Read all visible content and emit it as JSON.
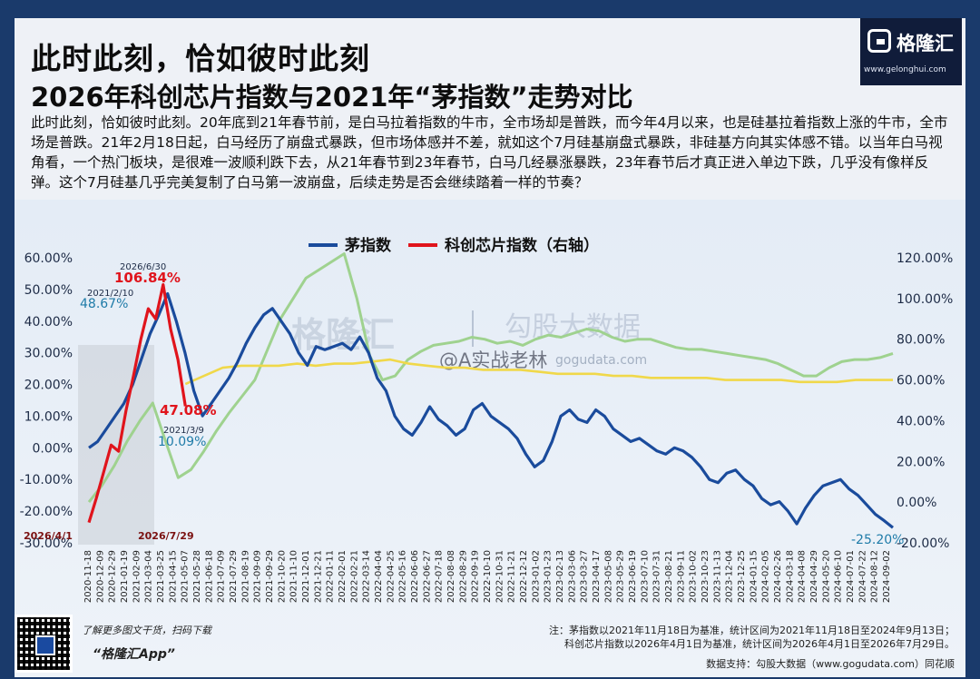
{
  "header": {
    "title1": "此时此刻，恰如彼时此刻",
    "title2": "2026年科创芯片指数与2021年“茅指数”走势对比",
    "paragraph": "此时此刻，恰如彼时此刻。20年底到21年春节前，是白马拉着指数的牛市，全市场却是普跌，而今年4月以来，也是硅基拉着指数上涨的牛市，全市场是普跌。21年2月18日起，白马经历了崩盘式暴跌，但市场体感并不差，就如这个7月硅基崩盘式暴跌，非硅基方向其实体感不错。以当年白马视角看，一个热门板块，是很难一波顺利跌下去，从21年春节到23年春节，白马几经暴涨暴跌，23年春节后才真正进入单边下跌，几乎没有像样反弹。这个7月硅基几乎完美复制了白马第一波崩盘，后续走势是否会继续踏着一样的节奏？"
  },
  "logo": {
    "name": "格隆汇",
    "url": "www.gelonghui.com"
  },
  "watermarks": {
    "wm1": "格隆汇",
    "wm2": "勾股大数据",
    "wm3": "gogudata.com",
    "weibo": "@A实战老林"
  },
  "chart_data": {
    "type": "line",
    "legend": [
      "茅指数",
      "科创芯片指数（右轴）"
    ],
    "left_axis": {
      "ticks": [
        "60.00%",
        "50.00%",
        "40.00%",
        "30.00%",
        "20.00%",
        "10.00%",
        "0.00%",
        "-10.00%",
        "-20.00%",
        "-30.00%"
      ],
      "range": [
        -30,
        60
      ]
    },
    "right_axis": {
      "ticks": [
        "120.00%",
        "100.00%",
        "80.00%",
        "60.00%",
        "40.00%",
        "20.00%",
        "0.00%",
        "-20.00%"
      ],
      "range": [
        -20,
        120
      ]
    },
    "x_ticks": [
      "2020-11-18",
      "2020-12-09",
      "2020-12-29",
      "2021-01-19",
      "2021-02-09",
      "2021-03-04",
      "2021-03-25",
      "2021-04-15",
      "2021-05-07",
      "2021-05-28",
      "2021-06-18",
      "2021-07-09",
      "2021-07-29",
      "2021-08-19",
      "2021-09-09",
      "2021-09-29",
      "2021-10-20",
      "2021-11-10",
      "2021-12-01",
      "2021-12-21",
      "2022-01-11",
      "2022-02-01",
      "2022-02-21",
      "2022-03-14",
      "2022-04-04",
      "2022-04-25",
      "2022-05-16",
      "2022-06-06",
      "2022-06-27",
      "2022-07-18",
      "2022-08-08",
      "2022-08-29",
      "2022-09-19",
      "2022-10-10",
      "2022-10-31",
      "2022-11-21",
      "2022-12-12",
      "2023-01-02",
      "2023-01-23",
      "2023-02-13",
      "2023-03-06",
      "2023-03-27",
      "2023-04-17",
      "2023-05-08",
      "2023-05-29",
      "2023-06-19",
      "2023-07-10",
      "2023-07-31",
      "2023-08-21",
      "2023-09-11",
      "2023-10-02",
      "2023-10-23",
      "2023-11-13",
      "2023-12-04",
      "2023-12-25",
      "2024-01-15",
      "2024-02-05",
      "2024-02-26",
      "2024-03-18",
      "2024-04-08",
      "2024-04-29",
      "2024-05-20",
      "2024-06-10",
      "2024-07-01",
      "2024-07-22",
      "2024-08-12",
      "2024-09-02"
    ],
    "series": [
      {
        "name": "茅指数",
        "color": "#1a4b9c",
        "axis": "left",
        "x_range": [
          0,
          1
        ],
        "values": [
          0,
          2,
          6,
          10,
          14,
          20,
          28,
          36,
          42,
          48.67,
          40,
          30,
          18,
          10.09,
          14,
          18,
          22,
          27,
          33,
          38,
          42,
          44,
          40,
          36,
          30,
          26,
          32,
          31,
          32,
          33,
          31,
          35,
          30,
          22,
          18,
          10,
          6,
          4,
          8,
          13,
          9,
          7,
          4,
          6,
          12,
          14,
          10,
          8,
          6,
          3,
          -2,
          -6,
          -4,
          2,
          10,
          12,
          9,
          8,
          12,
          10,
          6,
          4,
          2,
          3,
          1,
          -1,
          -2,
          0,
          -1,
          -3,
          -6,
          -10,
          -11,
          -8,
          -7,
          -10,
          -12,
          -16,
          -18,
          -17,
          -20,
          -24,
          -19,
          -15,
          -12,
          -11,
          -10,
          -13,
          -15,
          -18,
          -21,
          -23,
          -25.2
        ]
      },
      {
        "name": "科创芯片指数（右轴）",
        "color": "#e0141c",
        "axis": "right",
        "x_range": [
          0,
          0.12
        ],
        "values": [
          -10,
          2,
          15,
          28,
          25,
          45,
          62,
          80,
          95,
          90,
          106.84,
          85,
          70,
          47.08
        ]
      },
      {
        "name": "",
        "color": "#9fd28f",
        "axis": "right",
        "x_range": [
          0,
          1
        ],
        "values": [
          0,
          8,
          18,
          30,
          40,
          48.67,
          30,
          12,
          16,
          25,
          35,
          44,
          52,
          60,
          75,
          90,
          100,
          110,
          114,
          118,
          122,
          100,
          72,
          60,
          62,
          70,
          74,
          77,
          78,
          79,
          81,
          80,
          78,
          79,
          77,
          80,
          82,
          81,
          83,
          85,
          84,
          81,
          79,
          80,
          80,
          78,
          76,
          75,
          75,
          74,
          73,
          72,
          71,
          70,
          68,
          65,
          62,
          62,
          66,
          69,
          70,
          70,
          71,
          73
        ]
      },
      {
        "name": "",
        "color": "#f0d84a",
        "axis": "right",
        "x_range": [
          0.12,
          1
        ],
        "values": [
          58,
          62,
          66,
          67,
          67,
          67,
          68,
          67,
          68,
          68,
          69,
          70,
          68,
          67,
          66,
          66,
          65,
          65,
          65,
          64,
          63,
          63,
          63,
          62,
          62,
          61,
          61,
          61,
          61,
          60,
          60,
          60,
          60,
          59,
          59,
          59,
          60,
          60,
          60
        ]
      }
    ],
    "annotations": [
      "2021/2/10",
      "48.67%",
      "2026/6/30",
      "106.84%",
      "47.08%",
      "2021/3/9",
      "10.09%",
      "-25.20%",
      "2026/4/1",
      "2026/7/29"
    ]
  },
  "footer": {
    "left1": "了解更多图文干货，扫码下载",
    "left2": "“格隆汇App”",
    "note1": "注：茅指数以2021年11月18日为基准，统计区间为2021年11月18日至2024年9月13日；",
    "note2": "科创芯片指数以2026年4月1日为基准，统计区间为2026年4月1日至2026年7月29日。",
    "source": "数据支持：勾股大数据（www.gogudata.com）同花顺"
  }
}
